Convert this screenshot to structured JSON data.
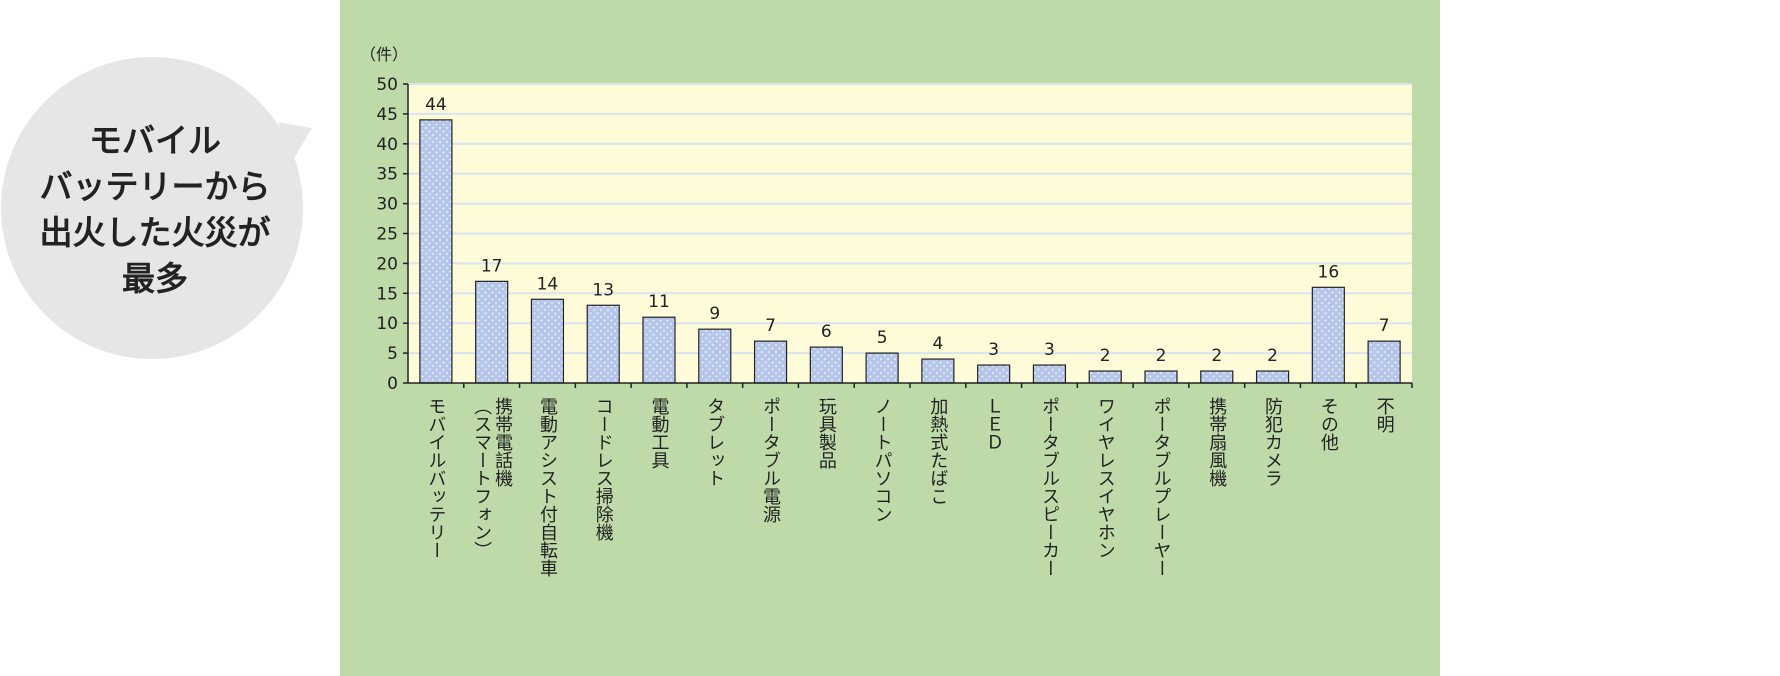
{
  "callout": {
    "lines": [
      "モバイル",
      "バッテリーから",
      "出火した火災が",
      "最多"
    ]
  },
  "colors": {
    "panel": "#bedaa9",
    "plot_bg": "#fdfbd8",
    "bar_fill": "#b6c6ea",
    "bar_stroke": "#222222",
    "gridline": "#d8e4ee",
    "callout_bg": "#e6e6e6"
  },
  "chart_data": {
    "type": "bar",
    "unit_label": "（件）",
    "ylim": [
      0,
      50
    ],
    "yticks": [
      0,
      5,
      10,
      15,
      20,
      25,
      30,
      35,
      40,
      45,
      50
    ],
    "grid": true,
    "categories": [
      "モバイルバッテリー",
      "携帯電話機（スマートフォン）",
      "電動アシスト付自転車",
      "コードレス掃除機",
      "電動工具",
      "タブレット",
      "ポータブル電源",
      "玩具製品",
      "ノートパソコン",
      "加熱式たばこ",
      "ＬＥＤ",
      "ポータブルスピーカー",
      "ワイヤレスイヤホン",
      "ポータブルプレーヤー",
      "携帯扇風機",
      "防犯カメラ",
      "その他",
      "不明"
    ],
    "values": [
      44,
      17,
      14,
      13,
      11,
      9,
      7,
      6,
      5,
      4,
      3,
      3,
      2,
      2,
      2,
      2,
      16,
      7
    ]
  }
}
